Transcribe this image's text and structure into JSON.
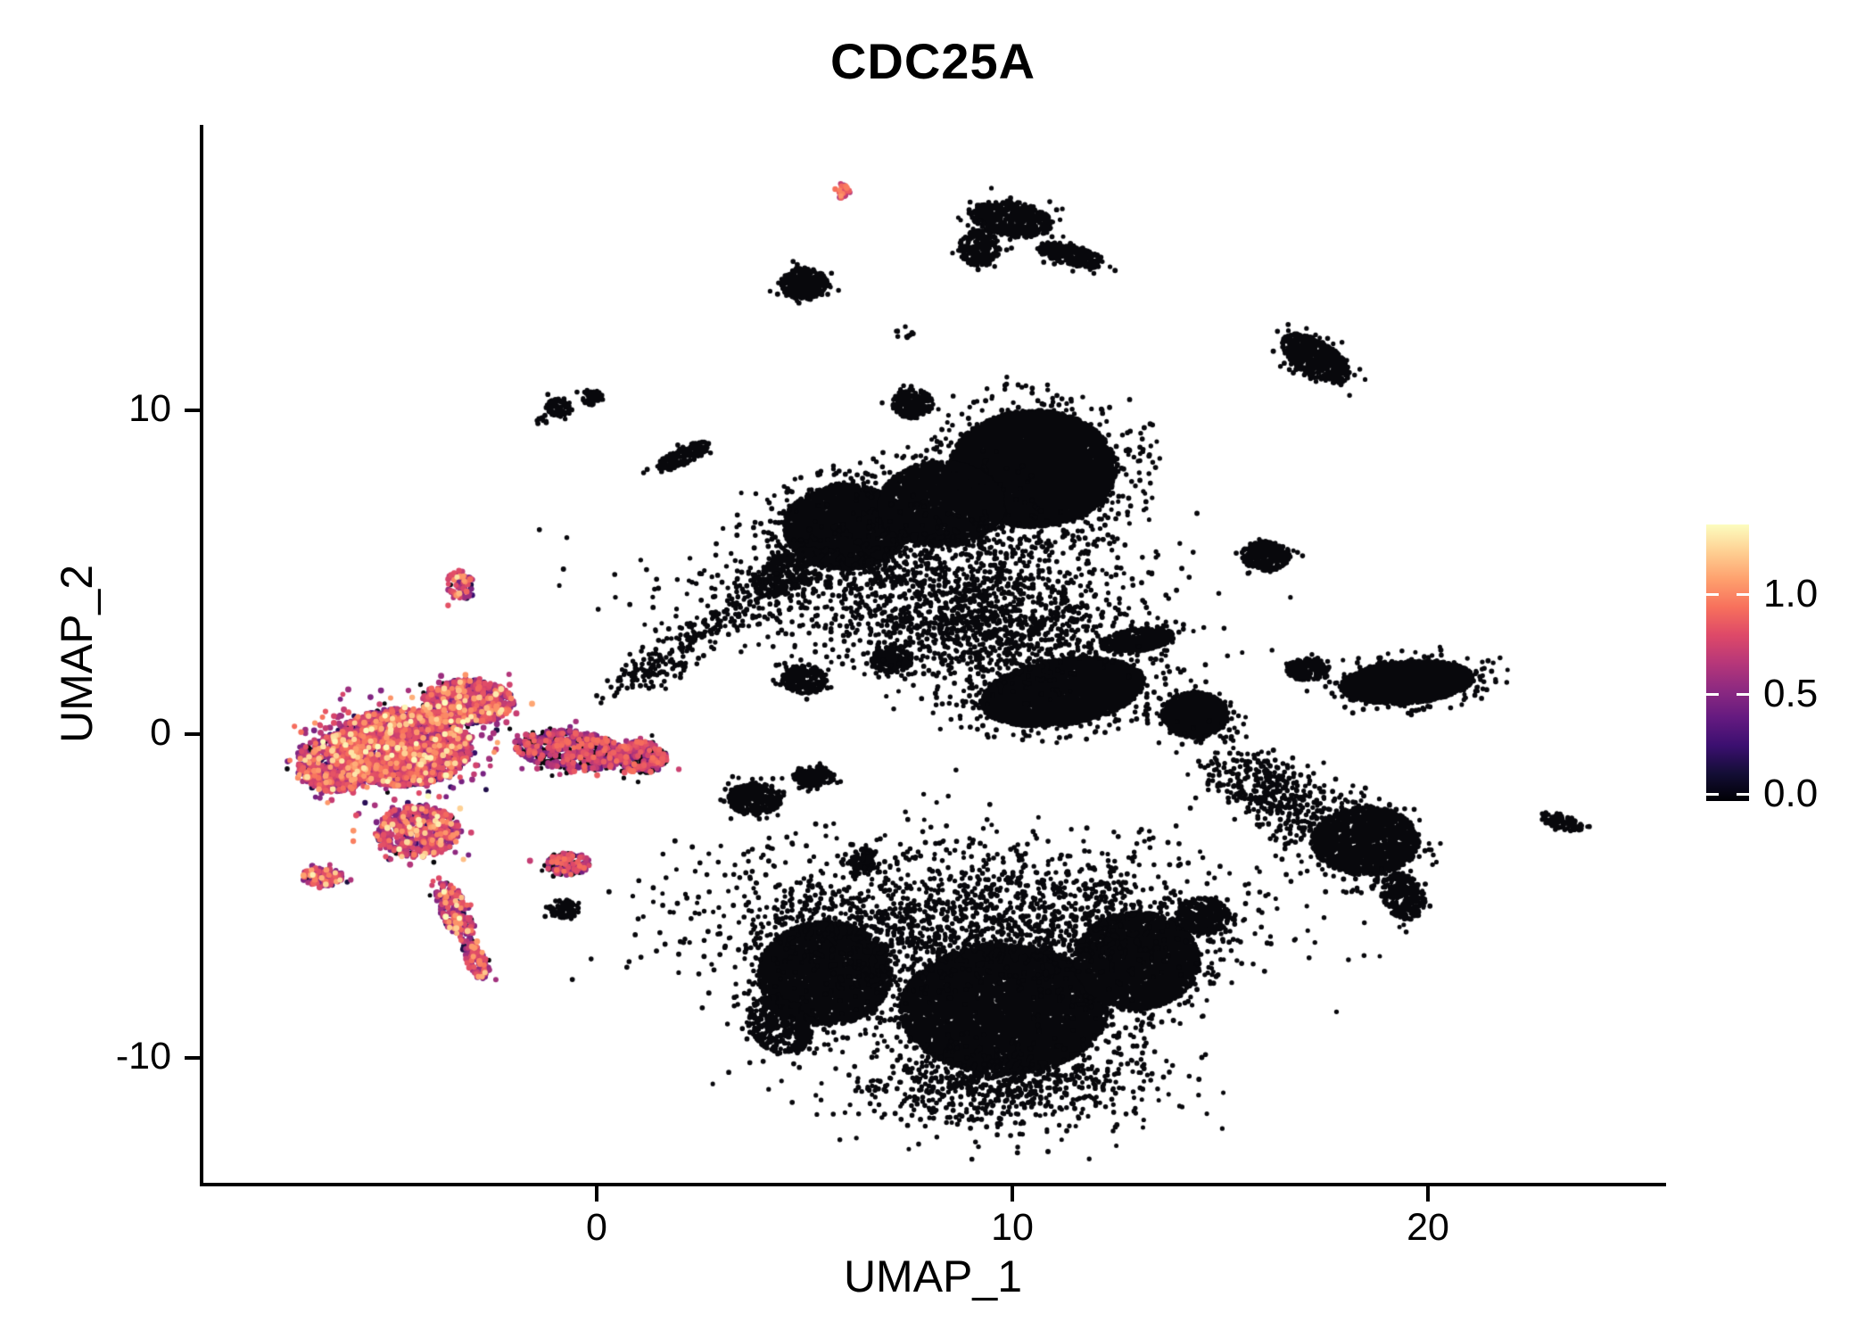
{
  "title": "CDC25A",
  "axes": {
    "x": {
      "label": "UMAP_1",
      "ticks": [
        "0",
        "10",
        "20"
      ],
      "tick_values": [
        0,
        10,
        20
      ]
    },
    "y": {
      "label": "UMAP_2",
      "ticks": [
        "-10",
        "0",
        "10"
      ],
      "tick_values": [
        -10,
        0,
        10
      ]
    }
  },
  "colorbar": {
    "tick_labels": [
      "1.0",
      "0.5",
      "0.0"
    ],
    "tick_values": [
      1.0,
      0.5,
      0.0
    ],
    "vmax": 1.35,
    "palette": [
      [
        0.0,
        "#000004"
      ],
      [
        0.1,
        "#140e36"
      ],
      [
        0.2,
        "#3b0f70"
      ],
      [
        0.3,
        "#641a80"
      ],
      [
        0.4,
        "#8c2981"
      ],
      [
        0.5,
        "#b73779"
      ],
      [
        0.6,
        "#de4968"
      ],
      [
        0.7,
        "#f7705c"
      ],
      [
        0.8,
        "#fe9f6d"
      ],
      [
        0.9,
        "#fecf92"
      ],
      [
        1.0,
        "#fcfdbf"
      ]
    ]
  },
  "chart_data": {
    "type": "scatter",
    "title": "CDC25A",
    "xlabel": "UMAP_1",
    "ylabel": "UMAP_2",
    "xlim": [
      -9.5,
      25.5
    ],
    "ylim": [
      -13.2,
      18.5
    ],
    "x_ticks": [
      0,
      10,
      20
    ],
    "y_ticks": [
      -10,
      0,
      10
    ],
    "colormap": "magma",
    "color_scale": {
      "min": 0.0,
      "max": 1.35,
      "legend_ticks": [
        0.0,
        0.5,
        1.0
      ]
    },
    "description": "UMAP feature plot of CDC25A expression in single cells. The left-hand cluster expresses CDC25A (magenta/orange, ~0.3-1.3), all other clusters are near zero (black).",
    "clusters": [
      {
        "cx": -4.7,
        "cy": -0.4,
        "rx": 1.7,
        "ry": 1.2,
        "rot": 0,
        "n": 2400,
        "expr": "high"
      },
      {
        "cx": -6.3,
        "cy": -0.9,
        "rx": 0.9,
        "ry": 0.9,
        "rot": 0,
        "n": 650,
        "expr": "high"
      },
      {
        "cx": -3.1,
        "cy": 1.0,
        "rx": 1.1,
        "ry": 0.7,
        "rot": 0,
        "n": 650,
        "expr": "high"
      },
      {
        "cx": -4.3,
        "cy": -3.0,
        "rx": 1.0,
        "ry": 0.8,
        "rot": 0,
        "n": 600,
        "expr": "high"
      },
      {
        "cx": -3.4,
        "cy": -5.5,
        "rx": 0.35,
        "ry": 1.0,
        "rot": 20,
        "n": 220,
        "expr": "high"
      },
      {
        "cx": -2.9,
        "cy": -7.0,
        "rx": 0.25,
        "ry": 0.6,
        "rot": 20,
        "n": 110,
        "expr": "high"
      },
      {
        "cx": -6.6,
        "cy": -4.4,
        "rx": 0.5,
        "ry": 0.3,
        "rot": 0,
        "n": 130,
        "expr": "high"
      },
      {
        "cx": -3.3,
        "cy": 4.6,
        "rx": 0.3,
        "ry": 0.5,
        "rot": 0,
        "n": 80,
        "expr": "high"
      },
      {
        "cx": -0.6,
        "cy": -0.5,
        "rx": 1.4,
        "ry": 0.6,
        "rot": -8,
        "n": 700,
        "expr": "some"
      },
      {
        "cx": 1.1,
        "cy": -0.7,
        "rx": 0.6,
        "ry": 0.5,
        "rot": 0,
        "n": 320,
        "expr": "some"
      },
      {
        "cx": -0.7,
        "cy": -4.0,
        "rx": 0.55,
        "ry": 0.35,
        "rot": 0,
        "n": 170,
        "expr": "some"
      },
      {
        "cx": 5.95,
        "cy": 16.7,
        "rx": 0.15,
        "ry": 0.25,
        "rot": 0,
        "n": 28,
        "expr": "pink"
      },
      {
        "cx": 5.0,
        "cy": 13.9,
        "rx": 0.55,
        "ry": 0.5,
        "rot": 0,
        "n": 380
      },
      {
        "cx": 10.0,
        "cy": 15.9,
        "rx": 1.0,
        "ry": 0.55,
        "rot": -12,
        "n": 520
      },
      {
        "cx": 9.2,
        "cy": 15.0,
        "rx": 0.5,
        "ry": 0.55,
        "rot": 0,
        "n": 220
      },
      {
        "cx": 11.4,
        "cy": 14.8,
        "rx": 0.85,
        "ry": 0.3,
        "rot": -18,
        "n": 260
      },
      {
        "cx": 17.3,
        "cy": 11.6,
        "rx": 1.0,
        "ry": 0.5,
        "rot": -42,
        "n": 600
      },
      {
        "cx": -0.9,
        "cy": 10.1,
        "rx": 0.32,
        "ry": 0.3,
        "rot": 0,
        "n": 80
      },
      {
        "cx": -0.1,
        "cy": 10.4,
        "rx": 0.26,
        "ry": 0.24,
        "rot": 0,
        "n": 55
      },
      {
        "cx": 2.1,
        "cy": 8.6,
        "rx": 0.75,
        "ry": 0.25,
        "rot": 33,
        "n": 160
      },
      {
        "cx": 10.5,
        "cy": 8.2,
        "rx": 2.0,
        "ry": 1.8,
        "rot": 0,
        "n": 6200
      },
      {
        "cx": 6.0,
        "cy": 6.4,
        "rx": 1.5,
        "ry": 1.3,
        "rot": 0,
        "n": 3000
      },
      {
        "cx": 8.3,
        "cy": 7.1,
        "rx": 1.5,
        "ry": 1.3,
        "rot": 0,
        "n": 2500
      },
      {
        "cx": 7.6,
        "cy": 10.2,
        "rx": 0.5,
        "ry": 0.45,
        "rot": 0,
        "n": 200
      },
      {
        "cx": 8.0,
        "cy": 4.5,
        "rx": 2.7,
        "ry": 1.1,
        "rot": 0,
        "n": 1300,
        "sparse": true
      },
      {
        "cx": 4.6,
        "cy": 5.0,
        "rx": 1.0,
        "ry": 0.55,
        "rot": 40,
        "n": 320
      },
      {
        "cx": 2.6,
        "cy": 3.2,
        "rx": 1.2,
        "ry": 0.28,
        "rot": 40,
        "n": 170,
        "sparse": true
      },
      {
        "cx": 1.2,
        "cy": 1.9,
        "rx": 0.55,
        "ry": 0.22,
        "rot": 30,
        "n": 90,
        "sparse": true
      },
      {
        "cx": 5.0,
        "cy": 1.7,
        "rx": 0.55,
        "ry": 0.45,
        "rot": 0,
        "n": 230
      },
      {
        "cx": 7.1,
        "cy": 2.3,
        "rx": 0.5,
        "ry": 0.4,
        "rot": 0,
        "n": 200
      },
      {
        "cx": 11.2,
        "cy": 1.3,
        "rx": 2.0,
        "ry": 1.0,
        "rot": 12,
        "n": 3600
      },
      {
        "cx": 13.0,
        "cy": 2.9,
        "rx": 0.9,
        "ry": 0.35,
        "rot": 10,
        "n": 380
      },
      {
        "cx": 9.6,
        "cy": 3.1,
        "rx": 1.3,
        "ry": 0.85,
        "rot": 0,
        "n": 650,
        "sparse": true
      },
      {
        "cx": 14.4,
        "cy": 0.6,
        "rx": 0.8,
        "ry": 0.7,
        "rot": 0,
        "n": 900
      },
      {
        "cx": 16.1,
        "cy": 5.5,
        "rx": 0.6,
        "ry": 0.45,
        "rot": 0,
        "n": 280
      },
      {
        "cx": 19.5,
        "cy": 1.6,
        "rx": 1.6,
        "ry": 0.65,
        "rot": 6,
        "n": 2200
      },
      {
        "cx": 17.1,
        "cy": 2.0,
        "rx": 0.5,
        "ry": 0.35,
        "rot": 0,
        "n": 200
      },
      {
        "cx": 16.1,
        "cy": -1.8,
        "rx": 1.0,
        "ry": 0.5,
        "rot": -38,
        "n": 420,
        "sparse": true
      },
      {
        "cx": 18.5,
        "cy": -3.3,
        "rx": 1.3,
        "ry": 1.05,
        "rot": 0,
        "n": 1600
      },
      {
        "cx": 19.4,
        "cy": -5.0,
        "rx": 0.5,
        "ry": 0.75,
        "rot": 18,
        "n": 300
      },
      {
        "cx": 23.2,
        "cy": -2.7,
        "rx": 0.55,
        "ry": 0.22,
        "rot": -22,
        "n": 95
      },
      {
        "cx": 3.8,
        "cy": -2.0,
        "rx": 0.65,
        "ry": 0.5,
        "rot": 0,
        "n": 360
      },
      {
        "cx": 5.2,
        "cy": -1.3,
        "rx": 0.5,
        "ry": 0.32,
        "rot": 0,
        "n": 170
      },
      {
        "cx": 6.4,
        "cy": -3.9,
        "rx": 0.32,
        "ry": 0.38,
        "rot": 0,
        "n": 100
      },
      {
        "cx": -0.8,
        "cy": -5.4,
        "rx": 0.38,
        "ry": 0.3,
        "rot": 0,
        "n": 85
      },
      {
        "cx": 5.5,
        "cy": -7.4,
        "rx": 1.6,
        "ry": 1.6,
        "rot": 0,
        "n": 3200
      },
      {
        "cx": 9.8,
        "cy": -8.5,
        "rx": 2.5,
        "ry": 2.0,
        "rot": 0,
        "n": 6800
      },
      {
        "cx": 13.0,
        "cy": -7.0,
        "rx": 1.5,
        "ry": 1.5,
        "rot": 0,
        "n": 2800
      },
      {
        "cx": 9.0,
        "cy": -5.6,
        "rx": 3.3,
        "ry": 1.2,
        "rot": 0,
        "n": 1700,
        "sparse": true
      },
      {
        "cx": 9.5,
        "cy": -10.9,
        "rx": 1.9,
        "ry": 0.75,
        "rot": 0,
        "n": 650,
        "sparse": true
      },
      {
        "cx": 4.4,
        "cy": -9.0,
        "rx": 0.75,
        "ry": 0.95,
        "rot": 28,
        "n": 380
      },
      {
        "cx": 14.6,
        "cy": -5.6,
        "rx": 0.65,
        "ry": 0.55,
        "rot": 0,
        "n": 320
      },
      {
        "cx": -1.3,
        "cy": 9.7,
        "rx": 0.18,
        "ry": 0.15,
        "rot": 0,
        "n": 10
      },
      {
        "cx": 7.4,
        "cy": 12.4,
        "rx": 0.2,
        "ry": 0.2,
        "rot": 0,
        "n": 12
      }
    ]
  }
}
